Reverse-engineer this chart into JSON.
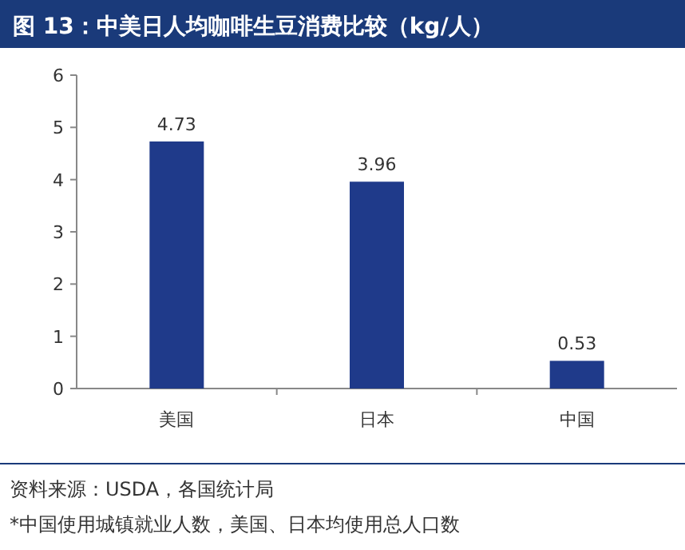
{
  "chart_data": {
    "type": "bar",
    "title": "图 13：中美日人均咖啡生豆消费比较（kg/人）",
    "categories": [
      "美国",
      "日本",
      "中国"
    ],
    "values": [
      4.73,
      3.96,
      0.53
    ],
    "color": "#1f3a8a",
    "ylim": [
      0,
      6
    ],
    "yticks": [
      0,
      1,
      2,
      3,
      4,
      5,
      6
    ],
    "data_labels": true,
    "annotations": [
      "资料来源：USDA，各国统计局",
      "*中国使用城镇就业人数，美国、日本均使用总人口数"
    ]
  }
}
